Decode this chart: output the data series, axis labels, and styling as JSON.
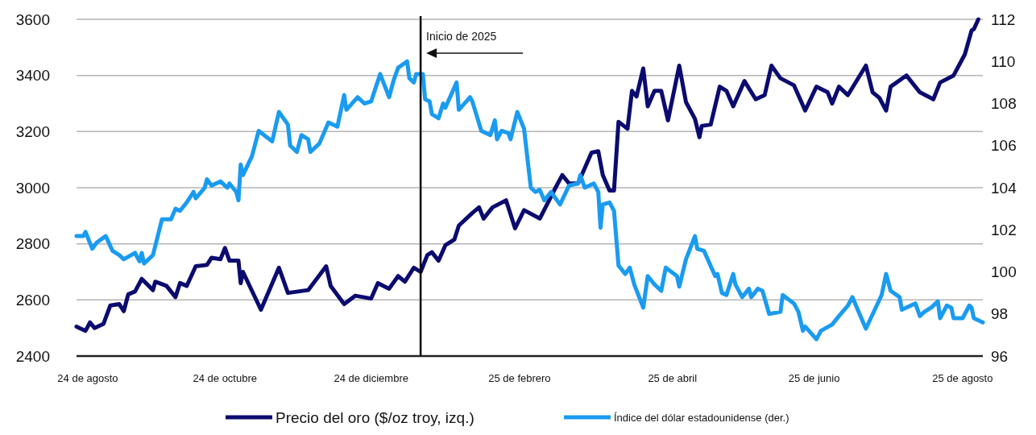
{
  "chart_data": {
    "type": "line",
    "xlim": [
      "2024-08-01",
      "2025-09-08"
    ],
    "xticks": [
      {
        "value": "2024-08-06",
        "label": "24 de agosto"
      },
      {
        "value": "2024-10-06",
        "label": "24 de octubre"
      },
      {
        "value": "2024-12-10",
        "label": "24 de diciembre"
      },
      {
        "value": "2025-02-14",
        "label": "25 de febrero"
      },
      {
        "value": "2025-04-23",
        "label": "25 de abril"
      },
      {
        "value": "2025-06-25",
        "label": "25 de junio"
      },
      {
        "value": "2025-08-30",
        "label": "25 de agosto"
      }
    ],
    "ylim": [
      2400,
      3600
    ],
    "yticks": [
      2400,
      2600,
      2800,
      3000,
      3200,
      3400,
      3600
    ],
    "y2lim": [
      96,
      112
    ],
    "y2ticks": [
      96,
      98,
      100,
      102,
      104,
      106,
      108,
      110,
      112
    ],
    "grid": "y",
    "legend": "bottom",
    "line_style": "solid",
    "marker": "none",
    "ref_lines": [
      {
        "axis": "x",
        "value": "2025-01-01",
        "label": "Inicio de 2025",
        "color": "#000000"
      }
    ],
    "series": [
      {
        "name": "Precio del oro ($/oz troy, izq.)",
        "color": "#0b0b6f",
        "x": [
          "2024-08-01",
          "2024-08-05",
          "2024-08-07",
          "2024-08-09",
          "2024-08-13",
          "2024-08-16",
          "2024-08-20",
          "2024-08-22",
          "2024-08-24",
          "2024-08-27",
          "2024-08-30",
          "2024-09-04",
          "2024-09-05",
          "2024-09-10",
          "2024-09-14",
          "2024-09-16",
          "2024-09-19",
          "2024-09-23",
          "2024-09-28",
          "2024-09-30",
          "2024-10-04",
          "2024-10-06",
          "2024-10-08",
          "2024-10-12",
          "2024-10-13",
          "2024-10-14",
          "2024-10-22",
          "2024-10-30",
          "2024-11-03",
          "2024-11-12",
          "2024-11-20",
          "2024-11-22",
          "2024-11-28",
          "2024-12-03",
          "2024-12-10",
          "2024-12-13",
          "2024-12-18",
          "2024-12-22",
          "2024-12-25",
          "2024-12-29",
          "2025-01-01",
          "2025-01-04",
          "2025-01-06",
          "2025-01-09",
          "2025-01-12",
          "2025-01-16",
          "2025-01-18",
          "2025-01-24",
          "2025-01-27",
          "2025-01-29",
          "2025-02-02",
          "2025-02-08",
          "2025-02-12",
          "2025-02-16",
          "2025-02-23",
          "2025-03-02",
          "2025-03-05",
          "2025-03-08",
          "2025-03-12",
          "2025-03-18",
          "2025-03-21",
          "2025-03-23",
          "2025-03-26",
          "2025-03-28",
          "2025-03-30",
          "2025-04-03",
          "2025-04-05",
          "2025-04-07",
          "2025-04-10",
          "2025-04-12",
          "2025-04-15",
          "2025-04-18",
          "2025-04-21",
          "2025-04-26",
          "2025-04-29",
          "2025-05-03",
          "2025-05-05",
          "2025-05-06",
          "2025-05-10",
          "2025-05-14",
          "2025-05-17",
          "2025-05-20",
          "2025-05-25",
          "2025-05-30",
          "2025-06-03",
          "2025-06-06",
          "2025-06-10",
          "2025-06-16",
          "2025-06-21",
          "2025-06-26",
          "2025-07-01",
          "2025-07-03",
          "2025-07-06",
          "2025-07-10",
          "2025-07-18",
          "2025-07-21",
          "2025-07-24",
          "2025-07-27",
          "2025-07-29",
          "2025-08-05",
          "2025-08-11",
          "2025-08-17",
          "2025-08-20",
          "2025-08-26",
          "2025-08-31",
          "2025-09-03",
          "2025-09-04",
          "2025-09-06"
        ],
        "values": [
          2505,
          2490,
          2520,
          2500,
          2515,
          2580,
          2585,
          2560,
          2620,
          2630,
          2675,
          2635,
          2665,
          2650,
          2610,
          2660,
          2650,
          2720,
          2725,
          2750,
          2745,
          2785,
          2740,
          2740,
          2660,
          2700,
          2565,
          2715,
          2625,
          2635,
          2720,
          2650,
          2585,
          2615,
          2605,
          2660,
          2640,
          2685,
          2665,
          2715,
          2700,
          2760,
          2770,
          2740,
          2795,
          2815,
          2865,
          2910,
          2930,
          2890,
          2930,
          2955,
          2855,
          2920,
          2890,
          3000,
          3045,
          3015,
          3015,
          3125,
          3130,
          3045,
          2990,
          2990,
          3235,
          3210,
          3345,
          3325,
          3425,
          3290,
          3345,
          3345,
          3240,
          3435,
          3305,
          3245,
          3180,
          3220,
          3225,
          3360,
          3345,
          3290,
          3380,
          3315,
          3330,
          3435,
          3390,
          3365,
          3275,
          3360,
          3340,
          3300,
          3360,
          3330,
          3435,
          3340,
          3320,
          3275,
          3360,
          3400,
          3340,
          3315,
          3375,
          3400,
          3475,
          3560,
          3565,
          3600
        ]
      },
      {
        "name": "Índice del dólar estadounidense (der.)",
        "color": "#1a9bf0",
        "axis": "y2",
        "x": [
          "2024-08-01",
          "2024-08-04",
          "2024-08-05",
          "2024-08-08",
          "2024-08-10",
          "2024-08-14",
          "2024-08-17",
          "2024-08-20",
          "2024-08-22",
          "2024-08-27",
          "2024-08-29",
          "2024-08-30",
          "2024-08-31",
          "2024-09-04",
          "2024-09-08",
          "2024-09-12",
          "2024-09-14",
          "2024-09-16",
          "2024-09-19",
          "2024-09-22",
          "2024-09-23",
          "2024-09-27",
          "2024-09-28",
          "2024-09-30",
          "2024-10-04",
          "2024-10-07",
          "2024-10-08",
          "2024-10-11",
          "2024-10-12",
          "2024-10-13",
          "2024-10-14",
          "2024-10-18",
          "2024-10-21",
          "2024-10-27",
          "2024-10-30",
          "2024-11-03",
          "2024-11-04",
          "2024-11-07",
          "2024-11-09",
          "2024-11-12",
          "2024-11-13",
          "2024-11-17",
          "2024-11-21",
          "2024-11-25",
          "2024-11-28",
          "2024-11-29",
          "2024-12-04",
          "2024-12-07",
          "2024-12-10",
          "2024-12-14",
          "2024-12-18",
          "2024-12-20",
          "2024-12-22",
          "2024-12-26",
          "2024-12-27",
          "2024-12-29",
          "2024-12-30",
          "2025-01-02",
          "2025-01-03",
          "2025-01-05",
          "2025-01-06",
          "2025-01-09",
          "2025-01-11",
          "2025-01-12",
          "2025-01-17",
          "2025-01-18",
          "2025-01-23",
          "2025-01-24",
          "2025-01-28",
          "2025-02-01",
          "2025-02-03",
          "2025-02-04",
          "2025-02-06",
          "2025-02-09",
          "2025-02-10",
          "2025-02-13",
          "2025-02-16",
          "2025-02-19",
          "2025-02-21",
          "2025-02-23",
          "2025-02-25",
          "2025-02-28",
          "2025-03-04",
          "2025-03-08",
          "2025-03-12",
          "2025-03-13",
          "2025-03-15",
          "2025-03-19",
          "2025-03-21",
          "2025-03-22",
          "2025-03-23",
          "2025-03-26",
          "2025-03-28",
          "2025-03-30",
          "2025-04-02",
          "2025-04-04",
          "2025-04-06",
          "2025-04-10",
          "2025-04-12",
          "2025-04-15",
          "2025-04-18",
          "2025-04-20",
          "2025-04-25",
          "2025-04-26",
          "2025-04-29",
          "2025-05-03",
          "2025-05-04",
          "2025-05-07",
          "2025-05-12",
          "2025-05-13",
          "2025-05-15",
          "2025-05-17",
          "2025-05-20",
          "2025-05-21",
          "2025-05-24",
          "2025-05-27",
          "2025-05-28",
          "2025-05-31",
          "2025-06-02",
          "2025-06-05",
          "2025-06-10",
          "2025-06-11",
          "2025-06-16",
          "2025-06-18",
          "2025-06-20",
          "2025-06-21",
          "2025-06-26",
          "2025-06-28",
          "2025-07-03",
          "2025-07-06",
          "2025-07-10",
          "2025-07-12",
          "2025-07-14",
          "2025-07-18",
          "2025-07-25",
          "2025-07-27",
          "2025-07-29",
          "2025-08-02",
          "2025-08-03",
          "2025-08-07",
          "2025-08-09",
          "2025-08-11",
          "2025-08-13",
          "2025-08-16",
          "2025-08-19",
          "2025-08-20",
          "2025-08-23",
          "2025-08-25",
          "2025-08-26",
          "2025-08-30",
          "2025-09-02",
          "2025-09-03",
          "2025-09-04",
          "2025-09-08"
        ],
        "values": [
          101.7,
          101.7,
          101.9,
          101.1,
          101.4,
          101.7,
          101.0,
          100.8,
          100.6,
          100.9,
          100.5,
          100.9,
          100.4,
          100.8,
          102.5,
          102.5,
          103.0,
          102.9,
          103.3,
          103.8,
          103.5,
          104.0,
          104.4,
          104.1,
          104.3,
          104.0,
          104.2,
          103.8,
          103.4,
          105.1,
          104.6,
          105.5,
          106.7,
          106.2,
          107.6,
          107.0,
          106.0,
          105.7,
          106.5,
          106.3,
          105.7,
          106.1,
          107.1,
          106.9,
          108.4,
          107.7,
          108.3,
          108.0,
          108.1,
          109.4,
          108.3,
          109.1,
          109.7,
          110.0,
          109.2,
          109.0,
          109.4,
          109.4,
          108.2,
          108.1,
          107.5,
          107.3,
          108.0,
          107.8,
          109.0,
          107.7,
          108.3,
          108.1,
          106.7,
          106.5,
          107.2,
          106.3,
          106.7,
          106.6,
          106.3,
          107.6,
          106.8,
          104.0,
          103.8,
          103.9,
          103.4,
          103.8,
          103.2,
          104.1,
          104.2,
          104.6,
          104.0,
          104.2,
          103.8,
          102.1,
          103.2,
          103.3,
          102.9,
          100.3,
          99.9,
          100.2,
          99.4,
          98.3,
          99.8,
          99.4,
          99.1,
          100.2,
          99.8,
          99.3,
          100.6,
          101.7,
          101.1,
          101.0,
          99.8,
          99.9,
          99.0,
          98.9,
          99.9,
          99.4,
          98.8,
          99.2,
          98.8,
          99.2,
          99.1,
          98.0,
          98.1,
          98.9,
          98.5,
          98.1,
          97.2,
          97.4,
          96.8,
          97.2,
          97.5,
          97.9,
          98.4,
          98.8,
          98.3,
          97.3,
          98.9,
          99.9,
          99.1,
          98.8,
          98.2,
          98.4,
          98.5,
          97.9,
          98.1,
          98.3,
          98.6,
          97.8,
          98.4,
          98.3,
          97.8,
          97.8,
          98.4,
          98.3,
          97.8,
          97.6
        ]
      }
    ]
  }
}
